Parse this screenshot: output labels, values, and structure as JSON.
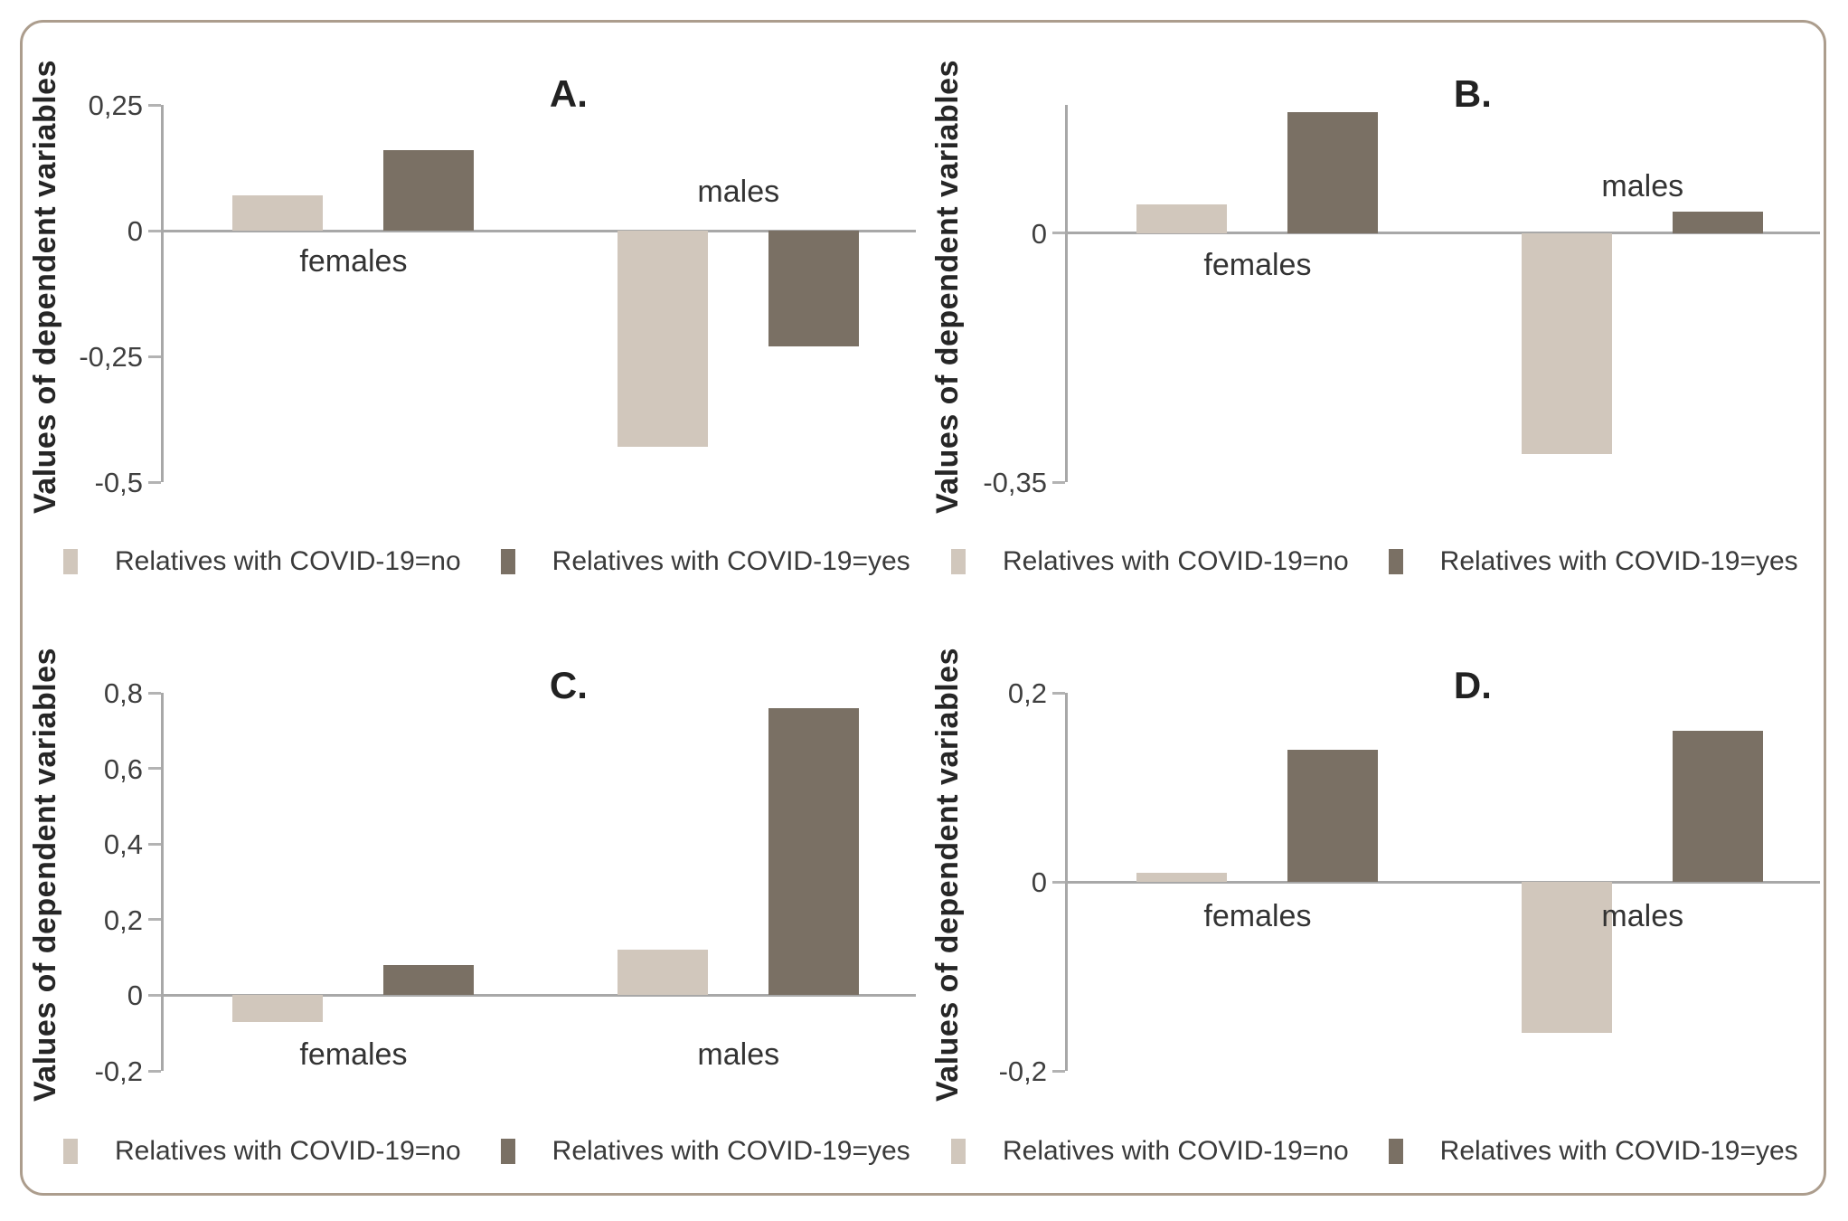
{
  "figure": {
    "y_axis_title": "Values of dependent variables",
    "legend": [
      {
        "label": "Relatives with COVID-19=no",
        "color": "#d1c7bc"
      },
      {
        "label": "Relatives with COVID-19=yes",
        "color": "#7a7064"
      }
    ],
    "colors": {
      "bar_light": "#d1c7bc",
      "bar_dark": "#7a7064",
      "axis_line": "#a8a8a8",
      "tick_text": "#3f3f3f",
      "category_text": "#333333",
      "title_text": "#222222",
      "border": "#ac9d8d",
      "background": "#ffffff"
    }
  },
  "chart_data": [
    {
      "type": "bar",
      "panel": "A.",
      "categories": [
        "females",
        "males"
      ],
      "series": [
        {
          "name": "Relatives with COVID-19=no",
          "values": [
            0.07,
            -0.43
          ]
        },
        {
          "name": "Relatives with COVID-19=yes",
          "values": [
            0.16,
            -0.23
          ]
        }
      ],
      "ylabel": "Values of dependent variables",
      "ylim": [
        -0.5,
        0.25
      ],
      "yticks": [
        0.25,
        0,
        -0.25,
        -0.5
      ],
      "ytick_labels": [
        "0,25",
        "0",
        "-0,25",
        "-0,5"
      ],
      "category_label_side": [
        "below",
        "above"
      ],
      "legend": [
        "Relatives with COVID-19=no",
        "Relatives with COVID-19=yes"
      ],
      "legend_position": "bottom",
      "grid": false
    },
    {
      "type": "bar",
      "panel": "B.",
      "categories": [
        "females",
        "males"
      ],
      "series": [
        {
          "name": "Relatives with COVID-19=no",
          "values": [
            0.04,
            -0.31
          ]
        },
        {
          "name": "Relatives with COVID-19=yes",
          "values": [
            0.17,
            0.03
          ]
        }
      ],
      "ylabel": "Values of dependent variables",
      "ylim": [
        -0.35,
        0.18
      ],
      "yticks": [
        0,
        -0.35
      ],
      "ytick_labels": [
        "0",
        "-0,35"
      ],
      "category_label_side": [
        "below",
        "above"
      ],
      "legend": [
        "Relatives with COVID-19=no",
        "Relatives with COVID-19=yes"
      ],
      "legend_position": "bottom",
      "grid": false
    },
    {
      "type": "bar",
      "panel": "C.",
      "categories": [
        "females",
        "males"
      ],
      "series": [
        {
          "name": "Relatives with COVID-19=no",
          "values": [
            -0.07,
            0.12
          ]
        },
        {
          "name": "Relatives with COVID-19=yes",
          "values": [
            0.08,
            0.76
          ]
        }
      ],
      "ylabel": "Values of dependent variables",
      "ylim": [
        -0.2,
        0.8
      ],
      "yticks": [
        0.8,
        0.6,
        0.4,
        0.2,
        0,
        -0.2
      ],
      "ytick_labels": [
        "0,8",
        "0,6",
        "0,4",
        "0,2",
        "0",
        "-0,2"
      ],
      "category_label_side": [
        "below",
        "below"
      ],
      "legend": [
        "Relatives with COVID-19=no",
        "Relatives with COVID-19=yes"
      ],
      "legend_position": "bottom",
      "grid": false
    },
    {
      "type": "bar",
      "panel": "D.",
      "categories": [
        "females",
        "males"
      ],
      "series": [
        {
          "name": "Relatives with COVID-19=no",
          "values": [
            0.01,
            -0.16
          ]
        },
        {
          "name": "Relatives with COVID-19=yes",
          "values": [
            0.14,
            0.16
          ]
        }
      ],
      "ylabel": "Values of dependent variables",
      "ylim": [
        -0.2,
        0.2
      ],
      "yticks": [
        0.2,
        0,
        -0.2
      ],
      "ytick_labels": [
        "0,2",
        "0",
        "-0,2"
      ],
      "category_label_side": [
        "below",
        "below"
      ],
      "legend": [
        "Relatives with COVID-19=no",
        "Relatives with COVID-19=yes"
      ],
      "legend_position": "bottom",
      "grid": false
    }
  ]
}
